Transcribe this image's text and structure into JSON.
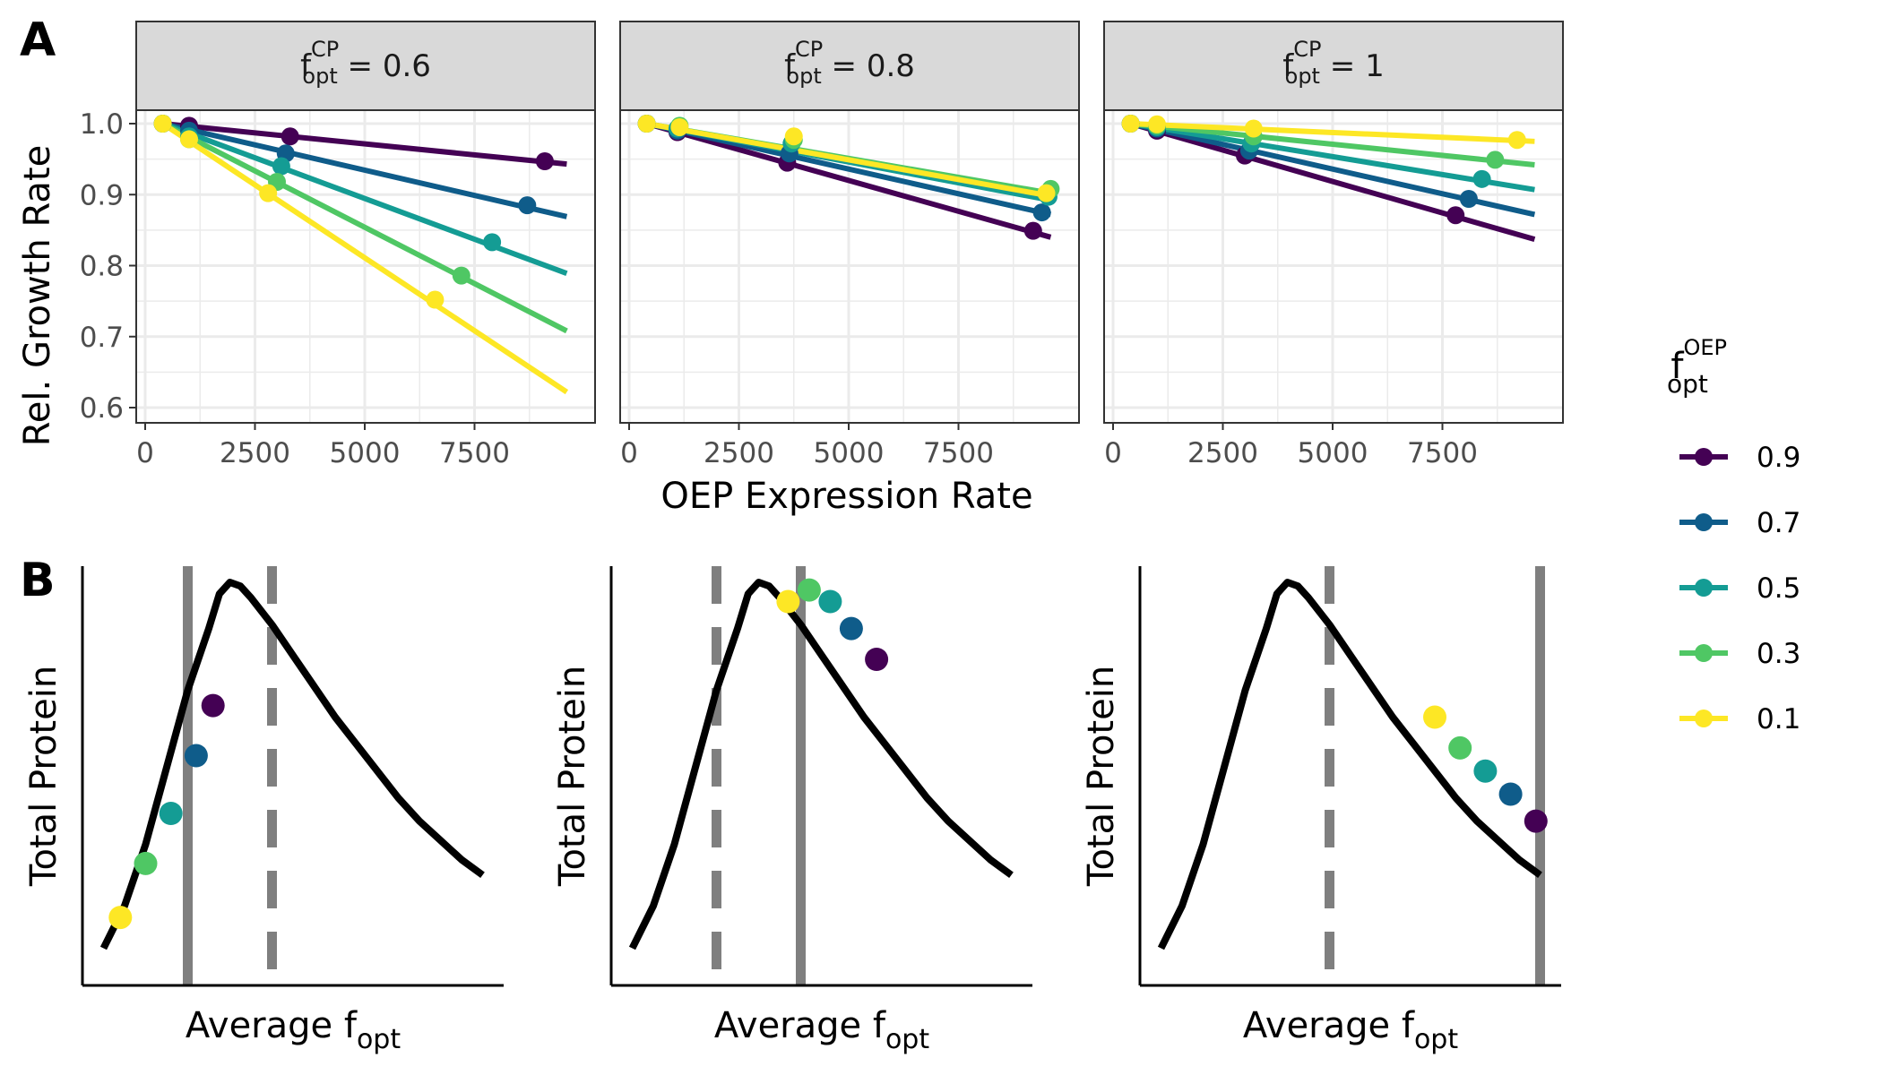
{
  "panel_labels": {
    "a": "A",
    "b": "B"
  },
  "colors": {
    "0.9": "#440154",
    "0.7": "#0f5c8a",
    "0.5": "#149c94",
    "0.3": "#4fc764",
    "0.1": "#fde725",
    "curve": "#000000",
    "vline": "#7f7f7f",
    "strip_bg": "#d9d9d9",
    "grid": "#ebebeb"
  },
  "legend": {
    "title_main": "f",
    "title_sup": "OEP",
    "title_sub": "opt",
    "items": [
      "0.9",
      "0.7",
      "0.5",
      "0.3",
      "0.1"
    ]
  },
  "chart_data": [
    {
      "type": "scatter",
      "panel": "A",
      "xlabel": "OEP Expression Rate",
      "ylabel": "Rel. Growth Rate",
      "xlim": [
        0,
        10000
      ],
      "ylim": [
        0.6,
        1.0
      ],
      "xticks": [
        0,
        2500,
        5000,
        7500
      ],
      "yticks": [
        0.6,
        0.7,
        0.8,
        0.9,
        1.0
      ],
      "ytick_labels": [
        "0.6",
        "0.7",
        "0.8",
        "0.9",
        "1.0"
      ],
      "facets": [
        {
          "label_main": "f",
          "label_sup": "CP",
          "label_sub": "opt",
          "label_rest": " = 0.6",
          "series": [
            {
              "name": "0.9",
              "points": [
                [
                  400,
                  1.0
                ],
                [
                  1000,
                  0.997
                ],
                [
                  3300,
                  0.982
                ],
                [
                  9100,
                  0.947
                ]
              ],
              "fit": [
                [
                  400,
                  1.0
                ],
                [
                  9600,
                  0.943
                ]
              ]
            },
            {
              "name": "0.7",
              "points": [
                [
                  400,
                  1.0
                ],
                [
                  1000,
                  0.99
                ],
                [
                  3200,
                  0.958
                ],
                [
                  8700,
                  0.885
                ]
              ],
              "fit": [
                [
                  400,
                  1.0
                ],
                [
                  9600,
                  0.869
                ]
              ]
            },
            {
              "name": "0.5",
              "points": [
                [
                  400,
                  1.0
                ],
                [
                  1000,
                  0.982
                ],
                [
                  3100,
                  0.94
                ],
                [
                  7900,
                  0.833
                ]
              ],
              "fit": [
                [
                  400,
                  1.0
                ],
                [
                  9600,
                  0.789
                ]
              ]
            },
            {
              "name": "0.3",
              "points": [
                [
                  400,
                  1.0
                ],
                [
                  1000,
                  0.978
                ],
                [
                  3000,
                  0.918
                ],
                [
                  7200,
                  0.786
                ]
              ],
              "fit": [
                [
                  400,
                  1.0
                ],
                [
                  9600,
                  0.708
                ]
              ]
            },
            {
              "name": "0.1",
              "points": [
                [
                  400,
                  1.0
                ],
                [
                  1000,
                  0.978
                ],
                [
                  2800,
                  0.902
                ],
                [
                  6600,
                  0.752
                ]
              ],
              "fit": [
                [
                  400,
                  1.0
                ],
                [
                  9600,
                  0.622
                ]
              ]
            }
          ]
        },
        {
          "label_main": "f",
          "label_sup": "CP",
          "label_sub": "opt",
          "label_rest": " = 0.8",
          "series": [
            {
              "name": "0.9",
              "points": [
                [
                  400,
                  1.0
                ],
                [
                  1100,
                  0.988
                ],
                [
                  3600,
                  0.945
                ],
                [
                  9200,
                  0.849
                ]
              ],
              "fit": [
                [
                  400,
                  1.0
                ],
                [
                  9600,
                  0.84
                ]
              ]
            },
            {
              "name": "0.7",
              "points": [
                [
                  400,
                  1.0
                ],
                [
                  1100,
                  0.99
                ],
                [
                  3650,
                  0.958
                ],
                [
                  9400,
                  0.875
                ]
              ],
              "fit": [
                [
                  400,
                  1.0
                ],
                [
                  9600,
                  0.872
                ]
              ]
            },
            {
              "name": "0.5",
              "points": [
                [
                  400,
                  1.0
                ],
                [
                  1100,
                  0.993
                ],
                [
                  3700,
                  0.972
                ],
                [
                  9550,
                  0.897
                ]
              ],
              "fit": [
                [
                  400,
                  1.0
                ],
                [
                  9600,
                  0.892
                ]
              ]
            },
            {
              "name": "0.3",
              "points": [
                [
                  400,
                  1.0
                ],
                [
                  1150,
                  0.997
                ],
                [
                  3750,
                  0.977
                ],
                [
                  9600,
                  0.908
                ]
              ],
              "fit": [
                [
                  400,
                  1.0
                ],
                [
                  9600,
                  0.902
                ]
              ]
            },
            {
              "name": "0.1",
              "points": [
                [
                  400,
                  1.0
                ],
                [
                  1150,
                  0.995
                ],
                [
                  3750,
                  0.982
                ],
                [
                  9500,
                  0.902
                ]
              ],
              "fit": [
                [
                  400,
                  1.0
                ],
                [
                  9600,
                  0.898
                ]
              ]
            }
          ]
        },
        {
          "label_main": "f",
          "label_sup": "CP",
          "label_sub": "opt",
          "label_rest": " = 1",
          "series": [
            {
              "name": "0.9",
              "points": [
                [
                  400,
                  1.0
                ],
                [
                  1000,
                  0.99
                ],
                [
                  3000,
                  0.955
                ],
                [
                  7800,
                  0.871
                ]
              ],
              "fit": [
                [
                  400,
                  1.0
                ],
                [
                  9600,
                  0.837
                ]
              ]
            },
            {
              "name": "0.7",
              "points": [
                [
                  400,
                  1.0
                ],
                [
                  1000,
                  0.993
                ],
                [
                  3100,
                  0.962
                ],
                [
                  8100,
                  0.894
                ]
              ],
              "fit": [
                [
                  400,
                  1.0
                ],
                [
                  9600,
                  0.872
                ]
              ]
            },
            {
              "name": "0.5",
              "points": [
                [
                  400,
                  1.0
                ],
                [
                  1000,
                  0.995
                ],
                [
                  3150,
                  0.972
                ],
                [
                  8400,
                  0.922
                ]
              ],
              "fit": [
                [
                  400,
                  1.0
                ],
                [
                  9600,
                  0.907
                ]
              ]
            },
            {
              "name": "0.3",
              "points": [
                [
                  400,
                  1.0
                ],
                [
                  1000,
                  0.997
                ],
                [
                  3200,
                  0.982
                ],
                [
                  8700,
                  0.949
                ]
              ],
              "fit": [
                [
                  400,
                  1.0
                ],
                [
                  9600,
                  0.942
                ]
              ]
            },
            {
              "name": "0.1",
              "points": [
                [
                  400,
                  1.0
                ],
                [
                  1000,
                  0.999
                ],
                [
                  3200,
                  0.993
                ],
                [
                  9200,
                  0.977
                ]
              ],
              "fit": [
                [
                  400,
                  1.0
                ],
                [
                  9600,
                  0.975
                ]
              ]
            }
          ]
        }
      ]
    },
    {
      "type": "line",
      "panel": "B",
      "xlabel_main": "Average f",
      "xlabel_sub": "opt",
      "ylabel": "Total Protein",
      "xlim": [
        0,
        1
      ],
      "ylim": [
        0,
        1
      ],
      "curve": [
        [
          0.05,
          0.05
        ],
        [
          0.1,
          0.16
        ],
        [
          0.15,
          0.32
        ],
        [
          0.2,
          0.52
        ],
        [
          0.25,
          0.72
        ],
        [
          0.3,
          0.88
        ],
        [
          0.325,
          0.97
        ],
        [
          0.35,
          1.0
        ],
        [
          0.375,
          0.99
        ],
        [
          0.4,
          0.96
        ],
        [
          0.45,
          0.89
        ],
        [
          0.5,
          0.81
        ],
        [
          0.55,
          0.73
        ],
        [
          0.6,
          0.65
        ],
        [
          0.65,
          0.58
        ],
        [
          0.7,
          0.51
        ],
        [
          0.75,
          0.44
        ],
        [
          0.8,
          0.38
        ],
        [
          0.85,
          0.33
        ],
        [
          0.9,
          0.28
        ],
        [
          0.95,
          0.24
        ]
      ],
      "facets": [
        {
          "solid_line_x": 0.25,
          "dashed_line_x": 0.45,
          "points": [
            {
              "name": "0.9",
              "x": 0.31,
              "y": 0.68
            },
            {
              "name": "0.7",
              "x": 0.27,
              "y": 0.55
            },
            {
              "name": "0.5",
              "x": 0.21,
              "y": 0.4
            },
            {
              "name": "0.3",
              "x": 0.15,
              "y": 0.27
            },
            {
              "name": "0.1",
              "x": 0.09,
              "y": 0.13
            }
          ]
        },
        {
          "solid_line_x": 0.45,
          "dashed_line_x": 0.25,
          "points": [
            {
              "name": "0.9",
              "x": 0.63,
              "y": 0.8
            },
            {
              "name": "0.7",
              "x": 0.57,
              "y": 0.88
            },
            {
              "name": "0.5",
              "x": 0.52,
              "y": 0.95
            },
            {
              "name": "0.3",
              "x": 0.47,
              "y": 0.98
            },
            {
              "name": "0.1",
              "x": 0.42,
              "y": 0.95
            }
          ]
        },
        {
          "solid_line_x": 0.95,
          "dashed_line_x": 0.45,
          "points": [
            {
              "name": "0.9",
              "x": 0.94,
              "y": 0.38
            },
            {
              "name": "0.7",
              "x": 0.88,
              "y": 0.45
            },
            {
              "name": "0.5",
              "x": 0.82,
              "y": 0.51
            },
            {
              "name": "0.3",
              "x": 0.76,
              "y": 0.57
            },
            {
              "name": "0.1",
              "x": 0.7,
              "y": 0.65
            }
          ]
        }
      ]
    }
  ]
}
